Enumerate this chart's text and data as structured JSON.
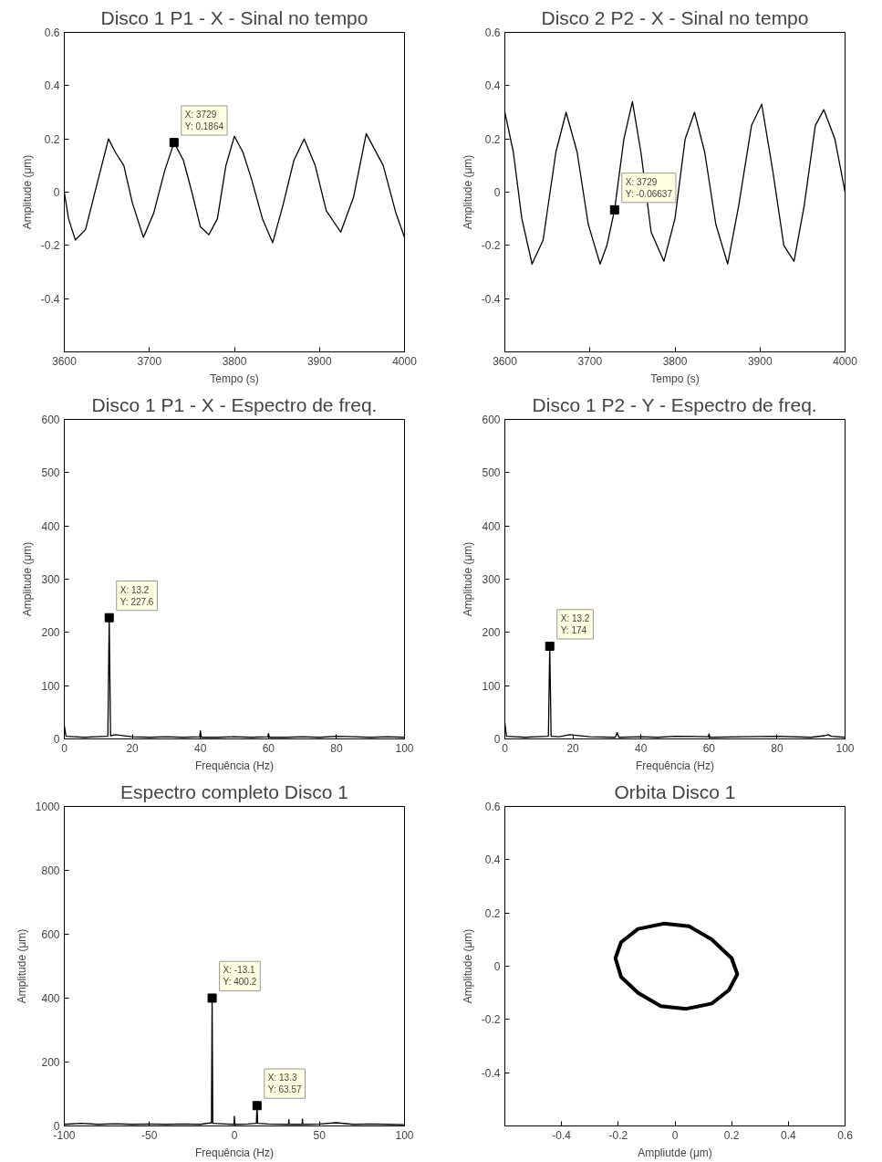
{
  "chart_data": [
    {
      "type": "line",
      "title": "Disco 1 P1 - X - Sinal no tempo",
      "xlabel": "Tempo (s)",
      "ylabel": "Amplitude (μm)",
      "x": [
        3600,
        3605,
        3613,
        3625,
        3640,
        3652,
        3660,
        3670,
        3680,
        3693,
        3705,
        3718,
        3729,
        3740,
        3750,
        3760,
        3770,
        3780,
        3790,
        3800,
        3810,
        3820,
        3833,
        3845,
        3857,
        3870,
        3882,
        3895,
        3908,
        3925,
        3940,
        3955,
        3965,
        3975,
        3990,
        4000
      ],
      "series": [
        {
          "color": "#000000",
          "values": [
            0.0,
            -0.1,
            -0.18,
            -0.14,
            0.05,
            0.2,
            0.15,
            0.1,
            -0.04,
            -0.17,
            -0.08,
            0.08,
            0.1864,
            0.12,
            0.0,
            -0.13,
            -0.16,
            -0.1,
            0.1,
            0.21,
            0.15,
            0.05,
            -0.1,
            -0.19,
            -0.05,
            0.12,
            0.2,
            0.1,
            -0.07,
            -0.15,
            -0.02,
            0.22,
            0.16,
            0.1,
            -0.08,
            -0.17
          ]
        }
      ],
      "xlim": [
        3600,
        4000
      ],
      "ylim": [
        -0.6,
        0.6
      ],
      "xticks": [
        3600,
        3700,
        3800,
        3900,
        4000
      ],
      "yticks": [
        -0.4,
        -0.2,
        0,
        0.2,
        0.4,
        0.6
      ],
      "annotations": [
        {
          "text": "X: 3729\nY: 0.1864",
          "x": 3729,
          "y": 0.1864
        }
      ]
    },
    {
      "type": "line",
      "title": "Disco 2 P2 - X - Sinal no tempo",
      "xlabel": "Tempo (s)",
      "ylabel": "Amplitude (μm)",
      "x": [
        3600,
        3610,
        3620,
        3632,
        3645,
        3660,
        3672,
        3685,
        3698,
        3712,
        3720,
        3729,
        3740,
        3750,
        3760,
        3772,
        3787,
        3800,
        3812,
        3823,
        3835,
        3848,
        3862,
        3875,
        3890,
        3902,
        3915,
        3928,
        3940,
        3952,
        3965,
        3975,
        3988,
        4000
      ],
      "series": [
        {
          "color": "#000000",
          "values": [
            0.3,
            0.15,
            -0.1,
            -0.27,
            -0.18,
            0.15,
            0.3,
            0.15,
            -0.12,
            -0.27,
            -0.2,
            -0.06637,
            0.2,
            0.34,
            0.15,
            -0.15,
            -0.26,
            -0.1,
            0.2,
            0.3,
            0.15,
            -0.12,
            -0.27,
            -0.05,
            0.25,
            0.33,
            0.08,
            -0.2,
            -0.26,
            -0.05,
            0.25,
            0.31,
            0.2,
            0.0
          ]
        }
      ],
      "xlim": [
        3600,
        4000
      ],
      "ylim": [
        -0.6,
        0.6
      ],
      "xticks": [
        3600,
        3700,
        3800,
        3900,
        4000
      ],
      "yticks": [
        -0.4,
        -0.2,
        0,
        0.2,
        0.4,
        0.6
      ],
      "annotations": [
        {
          "text": "X: 3729\nY: -0.06637",
          "x": 3729,
          "y": -0.06637
        }
      ]
    },
    {
      "type": "line",
      "title": "Disco 1 P1 - X - Espectro de freq.",
      "xlabel": "Frequência (Hz)",
      "ylabel": "Amplitude (μm)",
      "x": [
        0,
        0.5,
        3,
        6,
        9,
        12.8,
        13.2,
        13.6,
        15,
        20,
        25,
        30,
        35,
        39.8,
        40,
        40.3,
        45,
        50,
        55,
        59.8,
        60,
        60.3,
        65,
        70,
        75,
        80,
        85,
        90,
        95,
        100
      ],
      "series": [
        {
          "color": "#000000",
          "values": [
            25,
            5,
            4,
            3,
            4,
            5,
            227.6,
            6,
            8,
            4,
            3,
            4,
            3,
            4,
            15,
            3,
            3,
            4,
            3,
            4,
            10,
            3,
            3,
            4,
            3,
            5,
            4,
            3,
            4,
            3
          ]
        }
      ],
      "xlim": [
        0,
        100
      ],
      "ylim": [
        0,
        600
      ],
      "xticks": [
        0,
        20,
        40,
        60,
        80,
        100
      ],
      "yticks": [
        0,
        100,
        200,
        300,
        400,
        500,
        600
      ],
      "annotations": [
        {
          "text": "X: 13.2\nY: 227.6",
          "x": 13.2,
          "y": 227.6
        }
      ]
    },
    {
      "type": "line",
      "title": "Disco 1 P2 - Y - Espectro de freq.",
      "xlabel": "Frequência (Hz)",
      "ylabel": "Amplitude (μm)",
      "x": [
        0,
        0.5,
        3,
        6,
        9,
        12.8,
        13.2,
        13.6,
        16,
        19,
        25,
        32.5,
        33,
        33.5,
        40,
        45,
        50,
        59.8,
        60,
        60.3,
        70,
        80,
        90,
        94,
        95,
        96,
        100
      ],
      "series": [
        {
          "color": "#000000",
          "values": [
            30,
            5,
            4,
            3,
            4,
            5,
            174,
            5,
            4,
            8,
            4,
            3,
            12,
            3,
            4,
            3,
            5,
            4,
            9,
            3,
            4,
            5,
            3,
            6,
            8,
            5,
            3
          ]
        }
      ],
      "xlim": [
        0,
        100
      ],
      "ylim": [
        0,
        600
      ],
      "xticks": [
        0,
        20,
        40,
        60,
        80,
        100
      ],
      "yticks": [
        0,
        100,
        200,
        300,
        400,
        500,
        600
      ],
      "annotations": [
        {
          "text": "X: 13.2\nY: 174",
          "x": 13.2,
          "y": 174
        }
      ]
    },
    {
      "type": "line",
      "title": "Espectro completo Disco 1",
      "xlabel": "Frequência (Hz)",
      "ylabel": "Amplitude (μm)",
      "x": [
        -100,
        -90,
        -80,
        -70,
        -60,
        -50,
        -40,
        -30,
        -20,
        -13.5,
        -13.1,
        -12.7,
        -5,
        -0.3,
        0,
        0.3,
        8,
        12.9,
        13.3,
        13.7,
        20,
        31.8,
        32,
        32.2,
        39.8,
        40,
        40.2,
        50,
        60,
        70,
        80,
        90,
        100
      ],
      "series": [
        {
          "color": "#000000",
          "values": [
            5,
            8,
            5,
            7,
            5,
            6,
            5,
            6,
            5,
            10,
            400.2,
            8,
            6,
            5,
            30,
            5,
            6,
            8,
            63.57,
            8,
            6,
            5,
            20,
            5,
            5,
            22,
            5,
            6,
            10,
            5,
            6,
            5,
            4
          ]
        }
      ],
      "xlim": [
        -100,
        100
      ],
      "ylim": [
        0,
        1000
      ],
      "xticks": [
        -100,
        -50,
        0,
        50,
        100
      ],
      "yticks": [
        0,
        200,
        400,
        600,
        800,
        1000
      ],
      "annotations": [
        {
          "text": "X: -13.1\nY: 400.2",
          "x": -13.1,
          "y": 400.2
        },
        {
          "text": "X: 13.3\nY: 63.57",
          "x": 13.3,
          "y": 63.57
        }
      ]
    },
    {
      "type": "line",
      "title": "Orbita Disco 1",
      "xlabel": "Ampliutde (μm)",
      "ylabel": "Amplitude (μm)",
      "series": [
        {
          "color": "#000000",
          "x": [
            -0.21,
            -0.19,
            -0.13,
            -0.04,
            0.05,
            0.13,
            0.2,
            0.22,
            0.19,
            0.13,
            0.04,
            -0.05,
            -0.13,
            -0.19,
            -0.21,
            -0.2
          ],
          "values": [
            0.03,
            0.09,
            0.14,
            0.16,
            0.15,
            0.1,
            0.03,
            -0.03,
            -0.09,
            -0.14,
            -0.16,
            -0.15,
            -0.1,
            -0.04,
            0.03,
            0.06
          ]
        }
      ],
      "xlim": [
        -0.6,
        0.6
      ],
      "ylim": [
        -0.6,
        0.6
      ],
      "xticks": [
        -0.4,
        -0.2,
        0,
        0.2,
        0.4,
        0.6
      ],
      "yticks": [
        -0.4,
        -0.2,
        0,
        0.2,
        0.4,
        0.6
      ]
    }
  ]
}
